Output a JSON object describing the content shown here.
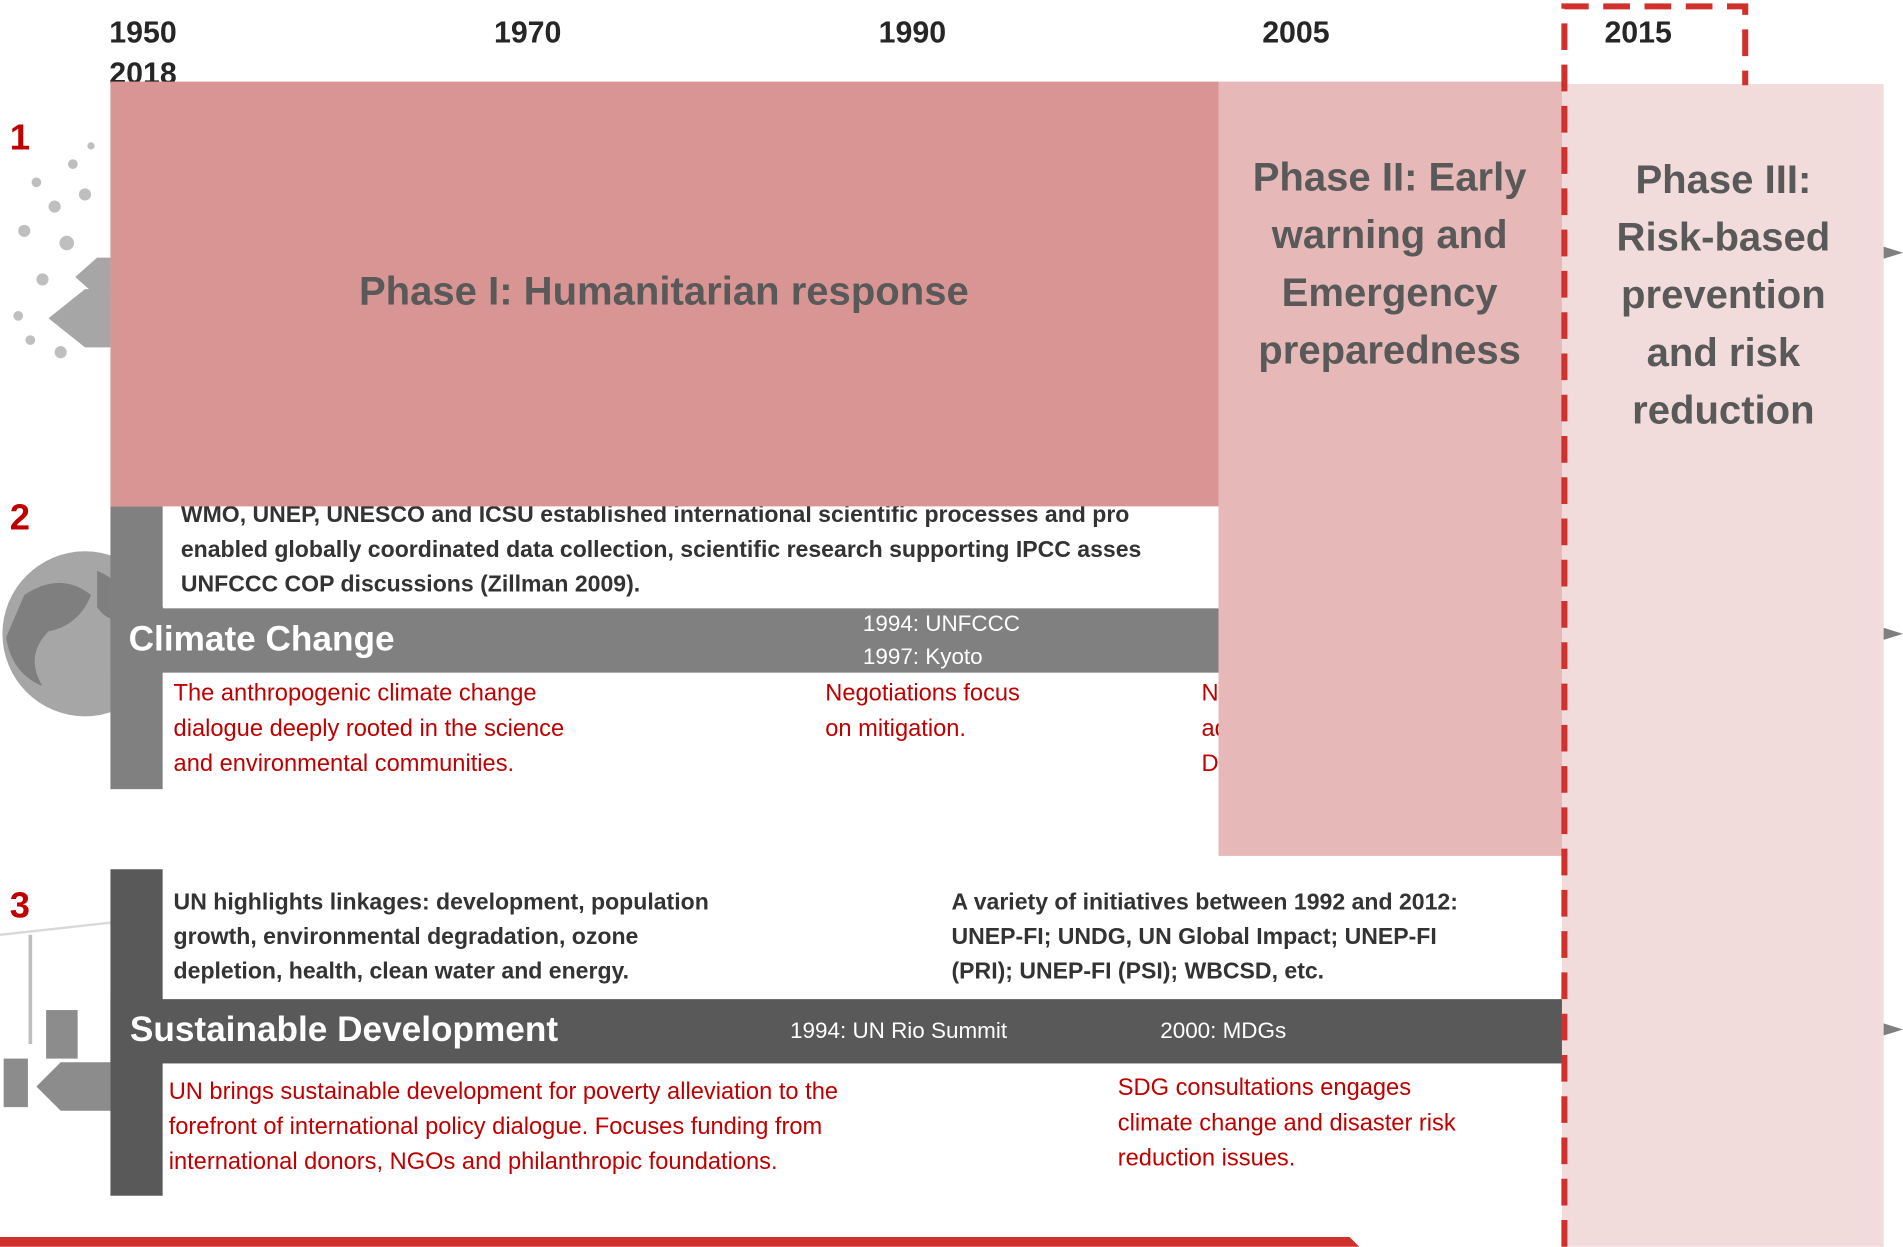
{
  "timeline": {
    "years": [
      "1950",
      "1970",
      "1990",
      "2005",
      "2015",
      "2018"
    ]
  },
  "rows": [
    {
      "number": "1"
    },
    {
      "number": "2",
      "title": "Climate Change",
      "summaries": [
        [
          "WMO, UNEP, UNESCO and ICSU established international scientific processes and pro",
          "enabled globally coordinated data collection, scientific research supporting IPCC asses",
          "UNFCCC COP discussions (Zillman 2009)."
        ]
      ],
      "milestones": [
        "1994: UNFCCC",
        "1997: Kyoto"
      ],
      "notes": [
        [
          "The anthropogenic climate change",
          "dialogue deeply rooted in the science",
          "and environmental communities."
        ],
        [
          "Negotiations focus",
          "on mitigation."
        ],
        [
          "N",
          "ad",
          "D"
        ]
      ]
    },
    {
      "number": "3",
      "title": "Sustainable Development",
      "summaries": [
        [
          "UN highlights linkages: development, population",
          "growth, environmental degradation, ozone",
          "depletion, health, clean water and energy."
        ],
        [
          "A variety of initiatives between 1992 and 2012:",
          "UNEP-FI; UNDG, UN Global Impact; UNEP-FI",
          "(PRI); UNEP-FI (PSI); WBCSD, etc."
        ]
      ],
      "milestones": [
        "1994: UN Rio Summit",
        "2000: MDGs"
      ],
      "notes": [
        [
          "UN brings sustainable development for poverty alleviation to the",
          "forefront of international policy dialogue. Focuses funding from",
          "international donors, NGOs and philanthropic foundations."
        ],
        [
          "SDG consultations engages",
          "climate change and disaster risk",
          "reduction issues."
        ]
      ]
    }
  ],
  "phases": [
    {
      "lines": [
        "Phase I: Humanitarian response"
      ]
    },
    {
      "lines": [
        "Phase II:  Early",
        "warning and",
        "Emergency",
        "preparedness"
      ]
    },
    {
      "lines": [
        "Phase III:",
        "Risk-based",
        "prevention",
        "and risk",
        "reduction"
      ]
    }
  ]
}
